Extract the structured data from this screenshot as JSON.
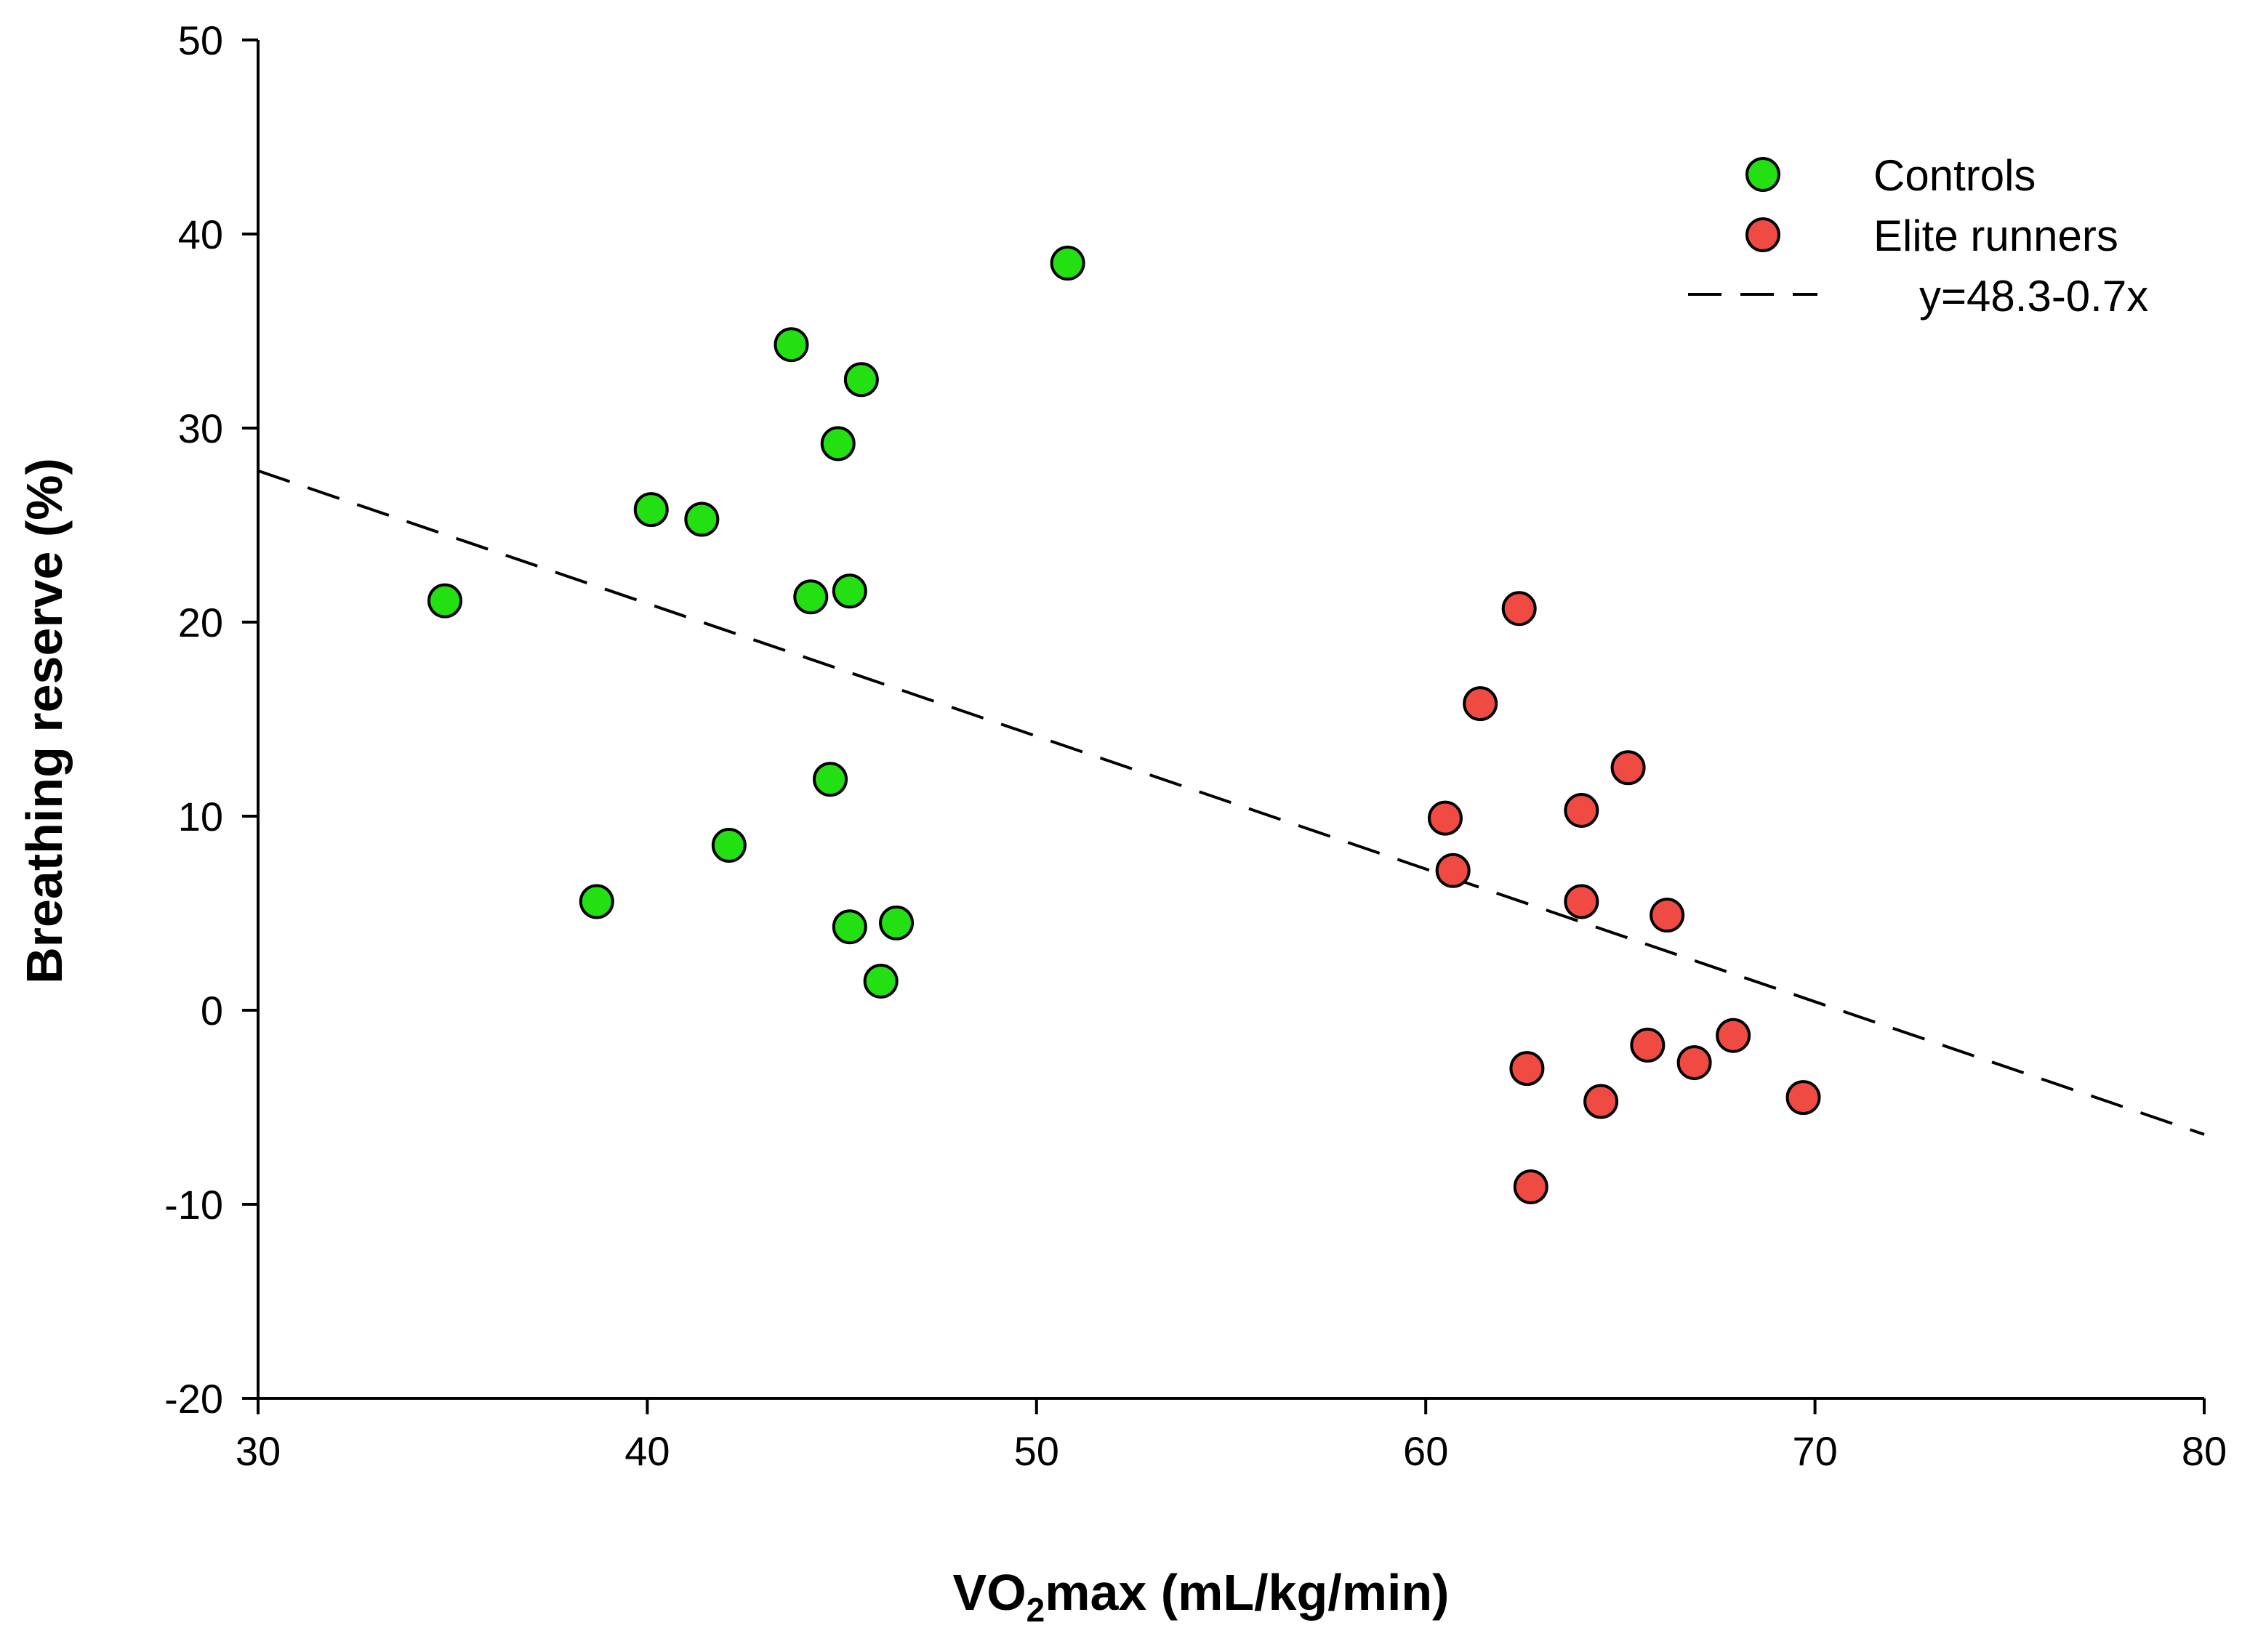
{
  "chart_data": {
    "type": "scatter",
    "title": "",
    "xlabel_main": "VO",
    "xlabel_sub": "2",
    "xlabel_rest": "max (mL/kg/min)",
    "ylabel": "Breathing reserve (%)",
    "xlim": [
      30,
      80
    ],
    "ylim": [
      -20,
      50
    ],
    "x_ticks": [
      30,
      40,
      50,
      60,
      70,
      80
    ],
    "y_ticks": [
      -20,
      -10,
      0,
      10,
      20,
      30,
      40,
      50
    ],
    "legend_position": "top-right",
    "series": [
      {
        "name": "Controls",
        "color": "#22e011",
        "points": [
          {
            "x": 34.8,
            "y": 21.1
          },
          {
            "x": 38.7,
            "y": 5.6
          },
          {
            "x": 40.1,
            "y": 25.8
          },
          {
            "x": 41.4,
            "y": 25.3
          },
          {
            "x": 42.1,
            "y": 8.5
          },
          {
            "x": 43.7,
            "y": 34.3
          },
          {
            "x": 44.2,
            "y": 21.3
          },
          {
            "x": 44.7,
            "y": 11.9
          },
          {
            "x": 44.9,
            "y": 29.2
          },
          {
            "x": 45.2,
            "y": 21.6
          },
          {
            "x": 45.2,
            "y": 4.3
          },
          {
            "x": 45.5,
            "y": 32.5
          },
          {
            "x": 46.0,
            "y": 1.5
          },
          {
            "x": 46.4,
            "y": 4.5
          },
          {
            "x": 50.8,
            "y": 38.5
          }
        ]
      },
      {
        "name": "Elite runners",
        "color": "#f04b43",
        "points": [
          {
            "x": 60.5,
            "y": 9.9
          },
          {
            "x": 60.7,
            "y": 7.2
          },
          {
            "x": 61.4,
            "y": 15.8
          },
          {
            "x": 62.4,
            "y": 20.7
          },
          {
            "x": 62.6,
            "y": -3.0
          },
          {
            "x": 62.7,
            "y": -9.1
          },
          {
            "x": 64.0,
            "y": 10.3
          },
          {
            "x": 64.0,
            "y": 5.6
          },
          {
            "x": 64.5,
            "y": -4.7
          },
          {
            "x": 65.2,
            "y": 12.5
          },
          {
            "x": 65.7,
            "y": -1.8
          },
          {
            "x": 66.2,
            "y": 4.9
          },
          {
            "x": 66.9,
            "y": -2.7
          },
          {
            "x": 67.9,
            "y": -1.3
          },
          {
            "x": 69.7,
            "y": -4.5
          }
        ]
      }
    ],
    "regression": {
      "label": "y=48.3-0.7x",
      "x": [
        30,
        80
      ],
      "y": [
        27.8,
        -6.4
      ]
    }
  }
}
